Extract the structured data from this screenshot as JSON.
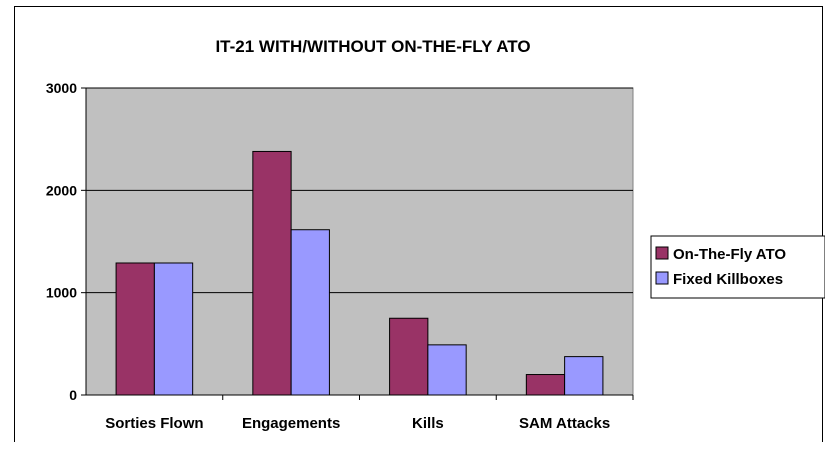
{
  "chart_data": {
    "type": "bar",
    "title": "IT-21 WITH/WITHOUT ON-THE-FLY ATO",
    "xlabel": "",
    "ylabel": "",
    "categories": [
      "Sorties Flown",
      "Engagements",
      "Kills",
      "SAM Attacks"
    ],
    "series": [
      {
        "name": "On-The-Fly ATO",
        "values": [
          1290,
          2380,
          750,
          200
        ]
      },
      {
        "name": "Fixed Killboxes",
        "values": [
          1290,
          1615,
          490,
          375
        ]
      }
    ],
    "ylim": [
      0,
      3000
    ],
    "yticks": [
      0,
      1000,
      2000,
      3000
    ],
    "grid": true,
    "legend": "right"
  },
  "colors": {
    "plot_background": "#c0c0c0",
    "series": [
      "#993366",
      "#9999ff"
    ]
  }
}
